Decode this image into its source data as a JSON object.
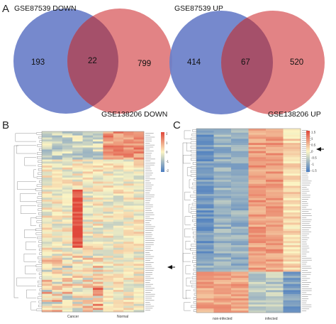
{
  "panels": {
    "A": "A",
    "B": "B",
    "C": "C"
  },
  "venn_down": {
    "left_set": "GSE87539 DOWN",
    "right_set": "GSE138206 DOWN",
    "left_only": "193",
    "overlap": "22",
    "right_only": "799",
    "left_color": "#6a7fc9",
    "right_color": "#e0787b",
    "overlap_color": "#a5506a"
  },
  "venn_up": {
    "left_set": "GSE87539 UP",
    "right_set": "GSE138206 UP",
    "left_only": "414",
    "overlap": "67",
    "right_only": "520",
    "left_color": "#6a7fc9",
    "right_color": "#e0787b",
    "overlap_color": "#a5506a"
  },
  "heatmap_b": {
    "group_labels": [
      "Cancer",
      "Normal"
    ],
    "legend_ticks": [
      "2",
      "1",
      "0",
      "-1",
      "-2"
    ]
  },
  "heatmap_c": {
    "group_labels": [
      "non-infected",
      "infected"
    ],
    "legend_ticks": [
      "1.5",
      "1",
      "0.5",
      "0",
      "-0.5",
      "-1",
      "-1.5"
    ]
  },
  "colors": {
    "low": "#4a7cc0",
    "mid": "#fbf5c4",
    "high": "#e0473a",
    "marker": "#111111"
  }
}
